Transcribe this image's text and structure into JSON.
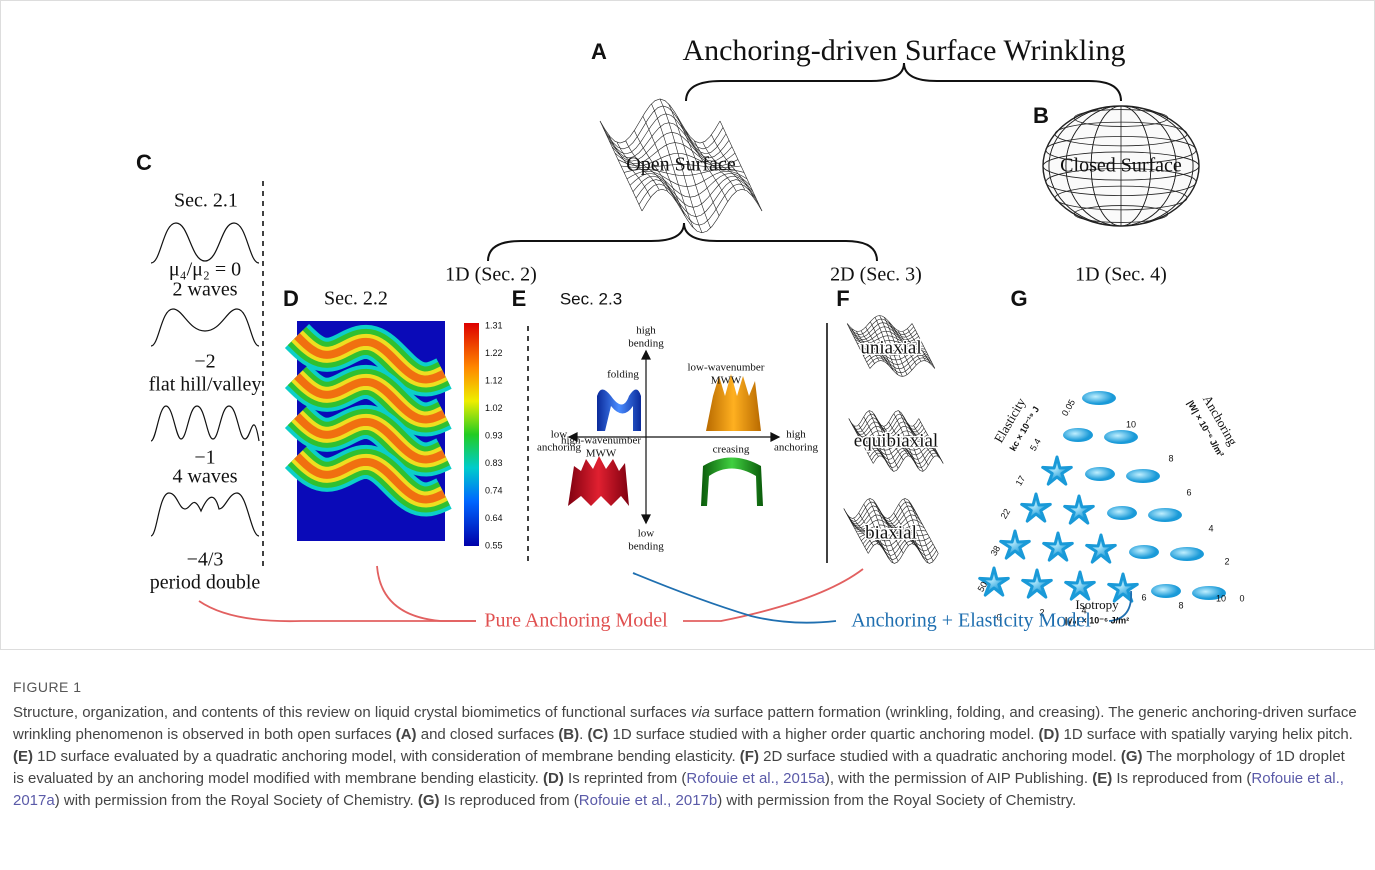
{
  "panels": {
    "A": {
      "label": "A",
      "title": "Anchoring-driven Surface Wrinkling",
      "surface": "Open Surface"
    },
    "B": {
      "label": "B",
      "surface": "Closed Surface"
    },
    "branches": [
      "1D (Sec. 2)",
      "2D (Sec. 3)",
      "1D (Sec. 4)"
    ],
    "C": {
      "label": "C",
      "section": "Sec. 2.1",
      "profiles": [
        {
          "ratio": "μ₄/μ₂ = 0",
          "name": "2 waves"
        },
        {
          "ratio": "−2",
          "name": "flat hill/valley"
        },
        {
          "ratio": "−1",
          "name": "4 waves"
        },
        {
          "ratio": "−4/3",
          "name": "period double"
        }
      ]
    },
    "D": {
      "label": "D",
      "section": "Sec. 2.2",
      "colorbar": [
        "1.31",
        "1.22",
        "1.12",
        "1.02",
        "0.93",
        "0.83",
        "0.74",
        "0.64",
        "0.55"
      ]
    },
    "E": {
      "label": "E",
      "section": "Sec. 2.3",
      "high_bending": [
        "high",
        "bending"
      ],
      "low_bending": [
        "low",
        "bending"
      ],
      "low_anchoring": [
        "low",
        "anchoring"
      ],
      "high_anchoring": [
        "high",
        "anchoring"
      ],
      "folding": "folding",
      "low_wavenumber": [
        "low-wavenumber",
        "MWW"
      ],
      "high_wavenumber": [
        "high-wavenumber",
        "MWW"
      ],
      "creasing": "creasing"
    },
    "F": {
      "label": "F",
      "surfaces": [
        "uniaxial",
        "equibiaxial",
        "biaxial"
      ]
    },
    "G": {
      "label": "G",
      "elasticity": [
        "0.05",
        "5.4",
        "17",
        "22",
        "38",
        "50"
      ],
      "anchoring": [
        "10",
        "8",
        "6",
        "4",
        "2",
        "0"
      ],
      "isotropy": [
        "0",
        "2",
        "4",
        "6",
        "8",
        "10"
      ],
      "elasticity_title": "Elasticity",
      "elasticity_unit": "kc × 10⁻¹⁹ J",
      "anchoring_title": "Anchoring",
      "anchoring_unit": "|W| × 10⁻⁶ J/m²",
      "isotropy_title": "Isotropy",
      "isotropy_unit": "|γ₀| × 10⁻⁶ J/m²"
    }
  },
  "models": [
    "Pure Anchoring Model",
    "Anchoring + Elasticity Model"
  ],
  "caption": {
    "label": "FIGURE 1",
    "parts": [
      "Structure, organization, and contents of this review on liquid crystal biomimetics of functional surfaces ",
      "via",
      " surface pattern formation (wrinkling, folding, and creasing). The generic anchoring-driven surface wrinkling phenomenon is observed in both open surfaces ",
      "(A)",
      " and closed surfaces ",
      "(B)",
      ". ",
      "(C)",
      " 1D surface studied with a higher order quartic anchoring model. ",
      "(D)",
      " 1D surface with spatially varying helix pitch. ",
      "(E)",
      " 1D surface evaluated by a quadratic anchoring model, with consideration of membrane bending elasticity. ",
      "(F)",
      " 2D surface studied with a quadratic anchoring model. ",
      "(G)",
      " The morphology of 1D droplet is evaluated by an anchoring model modified with membrane bending elasticity. ",
      "(D)",
      " Is reprinted from (",
      "Rofouie et al., 2015a",
      "), with the permission of AIP Publishing. ",
      "(E)",
      " Is reproduced from (",
      "Rofouie et al., 2017a",
      ") with permission from the Royal Society of Chemistry. ",
      "(G)",
      " Is reproduced from (",
      "Rofouie et al., 2017b",
      ") with permission from the Royal Society of Chemistry."
    ]
  }
}
